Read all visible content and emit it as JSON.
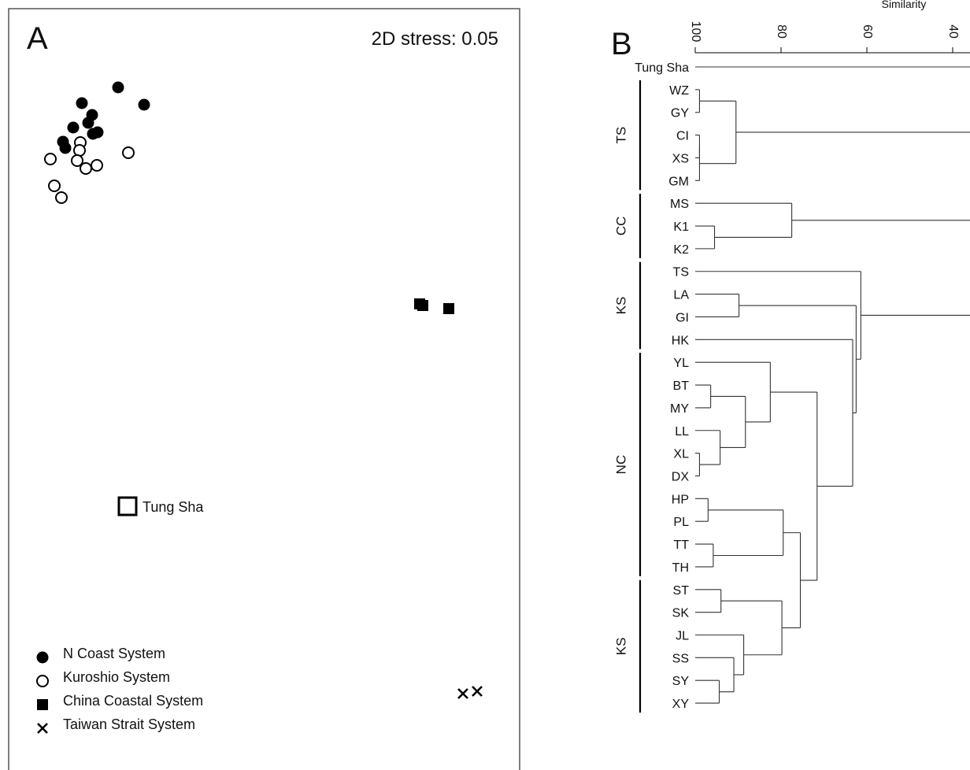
{
  "panel_a": {
    "letter": "A",
    "stress_label": "2D stress: 0.05",
    "highlight_label": "Tung Sha",
    "legend": [
      {
        "marker": "filled-circle",
        "label": "N Coast System"
      },
      {
        "marker": "open-circle",
        "label": "Kuroshio System"
      },
      {
        "marker": "filled-square",
        "label": "China Coastal System"
      },
      {
        "marker": "cross",
        "label": "Taiwan Strait System"
      }
    ]
  },
  "panel_b": {
    "letter": "B",
    "axis_title": "Similarity",
    "axis_ticks": [
      "100",
      "80",
      "60",
      "40"
    ],
    "root_leaf": "Tung Sha",
    "groups": [
      {
        "label": "TS"
      },
      {
        "label": "CC"
      },
      {
        "label": "KS"
      },
      {
        "label": "NC"
      },
      {
        "label": "KS"
      }
    ],
    "leaves": [
      "WZ",
      "GY",
      "CI",
      "XS",
      "GM",
      "MS",
      "K1",
      "K2",
      "TS",
      "LA",
      "GI",
      "HK",
      "YL",
      "BT",
      "MY",
      "LL",
      "XL",
      "DX",
      "HP",
      "PL",
      "TT",
      "TH",
      "ST",
      "SK",
      "JL",
      "SS",
      "SY",
      "XY"
    ]
  },
  "chart_data": [
    {
      "type": "scatter",
      "title": "",
      "annotation": "2D stress: 0.05",
      "xlabel": "",
      "ylabel": "",
      "legend_position": "bottom-left",
      "series": [
        {
          "name": "N Coast System",
          "marker": "filled-circle",
          "points": [
            [
              150,
              111
            ],
            [
              183,
              133
            ],
            [
              104,
              131
            ],
            [
              117,
              146
            ],
            [
              112,
              156
            ],
            [
              93,
              162
            ],
            [
              118,
              170
            ],
            [
              124,
              168
            ],
            [
              80,
              180
            ],
            [
              83,
              188
            ]
          ]
        },
        {
          "name": "Kuroshio System",
          "marker": "open-circle",
          "points": [
            [
              102,
              181
            ],
            [
              101,
              191
            ],
            [
              64,
              202
            ],
            [
              98,
              204
            ],
            [
              109,
              214
            ],
            [
              123,
              210
            ],
            [
              163,
              194
            ],
            [
              69,
              236
            ],
            [
              78,
              251
            ]
          ]
        },
        {
          "name": "China Coastal System",
          "marker": "filled-square",
          "points": [
            [
              533,
              386
            ],
            [
              537,
              388
            ],
            [
              570,
              392
            ]
          ]
        },
        {
          "name": "Taiwan Strait System",
          "marker": "cross",
          "points": [
            [
              588,
              881
            ],
            [
              606,
              878
            ]
          ]
        },
        {
          "name": "Tung Sha",
          "marker": "open-square",
          "points": [
            [
              162,
              643
            ]
          ]
        }
      ]
    },
    {
      "type": "dendrogram",
      "axis_title": "Similarity",
      "axis_ticks": [
        100,
        80,
        60,
        40
      ],
      "leaves": [
        "Tung Sha",
        "WZ",
        "GY",
        "CI",
        "XS",
        "GM",
        "MS",
        "K1",
        "K2",
        "TS",
        "LA",
        "GI",
        "HK",
        "YL",
        "BT",
        "MY",
        "LL",
        "XL",
        "DX",
        "HP",
        "PL",
        "TT",
        "TH",
        "ST",
        "SK",
        "JL",
        "SS",
        "SY",
        "XY"
      ],
      "nodes": [
        {
          "id": "n1",
          "sim": 99.0,
          "left": "WZ",
          "right": "GY"
        },
        {
          "id": "n2",
          "sim": 99.0,
          "left": "CI",
          "right": "XS"
        },
        {
          "id": "n3",
          "sim": 99.0,
          "left": "n2",
          "right": "GM"
        },
        {
          "id": "n4",
          "sim": 90.5,
          "left": "n1",
          "right": "n3"
        },
        {
          "id": "n5",
          "sim": 95.5,
          "left": "K1",
          "right": "K2"
        },
        {
          "id": "n6",
          "sim": 77.5,
          "left": "MS",
          "right": "n5"
        },
        {
          "id": "n7",
          "sim": 89.8,
          "left": "LA",
          "right": "GI"
        },
        {
          "id": "n8",
          "sim": 96.4,
          "left": "BT",
          "right": "MY"
        },
        {
          "id": "n9",
          "sim": 99.0,
          "left": "XL",
          "right": "DX"
        },
        {
          "id": "n10",
          "sim": 94.2,
          "left": "LL",
          "right": "n9"
        },
        {
          "id": "n11",
          "sim": 88.3,
          "left": "n8",
          "right": "n10"
        },
        {
          "id": "n12",
          "sim": 82.5,
          "left": "YL",
          "right": "n11"
        },
        {
          "id": "n13",
          "sim": 97.0,
          "left": "HP",
          "right": "PL"
        },
        {
          "id": "n14",
          "sim": 95.8,
          "left": "TT",
          "right": "TH"
        },
        {
          "id": "n15",
          "sim": 79.5,
          "left": "n13",
          "right": "n14"
        },
        {
          "id": "n16",
          "sim": 94.0,
          "left": "ST",
          "right": "SK"
        },
        {
          "id": "n17",
          "sim": 94.4,
          "left": "SY",
          "right": "XY"
        },
        {
          "id": "n18",
          "sim": 91.0,
          "left": "SS",
          "right": "n17"
        },
        {
          "id": "n19",
          "sim": 88.7,
          "left": "JL",
          "right": "n18"
        },
        {
          "id": "n20",
          "sim": 79.8,
          "left": "n16",
          "right": "n19"
        },
        {
          "id": "n21",
          "sim": 75.5,
          "left": "n15",
          "right": "n20"
        },
        {
          "id": "n22",
          "sim": 71.6,
          "left": "n12",
          "right": "n21"
        },
        {
          "id": "n23",
          "sim": 63.3,
          "left": "HK",
          "right": "n22"
        },
        {
          "id": "n24",
          "sim": 62.5,
          "left": "n7",
          "right": "n23"
        },
        {
          "id": "n25",
          "sim": 61.4,
          "left": "TS",
          "right": "n24"
        }
      ],
      "groups": [
        {
          "label": "TS",
          "leaves": [
            "WZ",
            "GY",
            "CI",
            "XS",
            "GM"
          ]
        },
        {
          "label": "CC",
          "leaves": [
            "MS",
            "K1",
            "K2"
          ]
        },
        {
          "label": "KS",
          "leaves": [
            "TS",
            "LA",
            "GI",
            "HK"
          ]
        },
        {
          "label": "NC",
          "leaves": [
            "YL",
            "BT",
            "MY",
            "LL",
            "XL",
            "DX",
            "HP",
            "PL",
            "TT",
            "TH"
          ]
        },
        {
          "label": "KS",
          "leaves": [
            "ST",
            "SK",
            "JL",
            "SS",
            "SY",
            "XY"
          ]
        }
      ]
    }
  ]
}
